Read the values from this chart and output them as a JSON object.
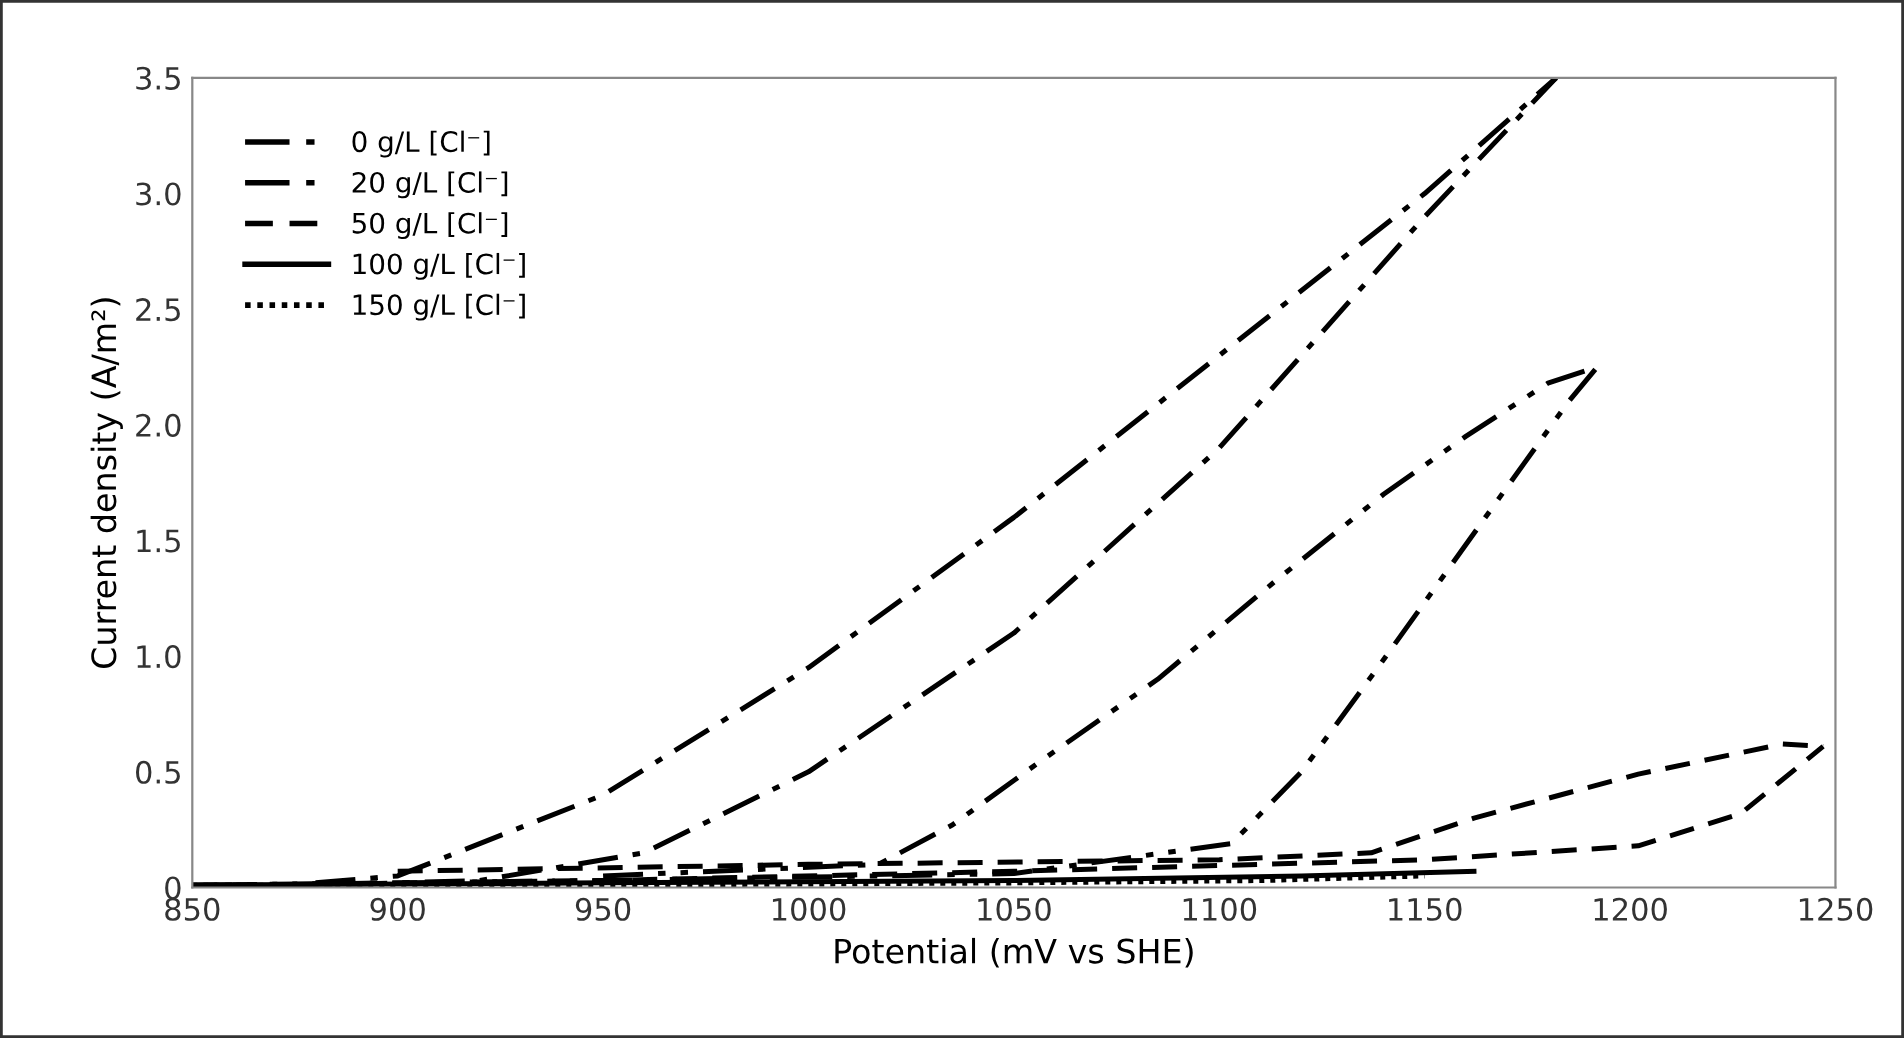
{
  "chart_data": {
    "type": "line",
    "xlabel": "Potential (mV vs SHE)",
    "ylabel": "Current density (A/m²)",
    "xlim": [
      850,
      1250
    ],
    "ylim": [
      0,
      3.5
    ],
    "xticks": [
      850,
      900,
      950,
      1000,
      1050,
      1100,
      1150,
      1200,
      1250
    ],
    "yticks": [
      {
        "value": 0,
        "label": "0"
      },
      {
        "value": 0.5,
        "label": "0.5"
      },
      {
        "value": 1,
        "label": "1.0"
      },
      {
        "value": 1.5,
        "label": "1.5"
      },
      {
        "value": 2,
        "label": "2.0"
      },
      {
        "value": 2.5,
        "label": "2.5"
      },
      {
        "value": 3,
        "label": "3.0"
      },
      {
        "value": 3.5,
        "label": "3.5"
      }
    ],
    "grid": false,
    "legend": "top left",
    "marker": "none",
    "series": [
      {
        "name": "0 g/L [Cl⁻]",
        "color": "#000000",
        "line_style": "dashdot",
        "x": [
          850,
          880,
          900,
          920,
          960,
          1000,
          1050,
          1100,
          1150,
          1182
        ],
        "values": [
          0.01,
          0.01,
          0.02,
          0.03,
          0.15,
          0.5,
          1.1,
          1.9,
          2.9,
          3.5
        ]
      },
      {
        "color": "#000000",
        "line_style": "dashdot",
        "x": [
          880,
          900,
          950,
          1000,
          1050,
          1100,
          1150,
          1182
        ],
        "values": [
          0.02,
          0.05,
          0.4,
          0.95,
          1.6,
          2.3,
          3.0,
          3.5
        ]
      },
      {
        "name": "20 g/L [Cl⁻]",
        "color": "#000000",
        "line_style": "dashdotdot",
        "x": [
          850,
          950,
          1050,
          1103,
          1120,
          1139,
          1168,
          1185,
          1192
        ],
        "values": [
          0.01,
          0.03,
          0.06,
          0.19,
          0.5,
          0.96,
          1.68,
          2.1,
          2.25
        ]
      },
      {
        "color": "#000000",
        "line_style": "dashdotdot",
        "x": [
          950,
          1017,
          1035,
          1056,
          1085,
          1114,
          1140,
          1160,
          1180,
          1192
        ],
        "values": [
          0.05,
          0.1,
          0.27,
          0.54,
          0.9,
          1.33,
          1.7,
          1.95,
          2.18,
          2.25
        ]
      },
      {
        "name": "50 g/L [Cl⁻]",
        "color": "#000000",
        "line_style": "dashed",
        "x": [
          850,
          950,
          1050,
          1150,
          1202,
          1227,
          1247
        ],
        "values": [
          0.01,
          0.03,
          0.07,
          0.12,
          0.18,
          0.32,
          0.61
        ]
      },
      {
        "color": "#000000",
        "line_style": "dashed",
        "x": [
          900,
          1000,
          1100,
          1137,
          1162,
          1202,
          1237,
          1247
        ],
        "values": [
          0.07,
          0.1,
          0.12,
          0.15,
          0.3,
          0.49,
          0.62,
          0.61
        ]
      },
      {
        "name": "100 g/L [Cl⁻]",
        "color": "#000000",
        "line_style": "solid",
        "x": [
          850,
          950,
          1050,
          1120,
          1162
        ],
        "values": [
          0.01,
          0.02,
          0.03,
          0.05,
          0.07
        ]
      },
      {
        "name": "150 g/L [Cl⁻]",
        "color": "#000000",
        "line_style": "dotted",
        "x": [
          850,
          950,
          1050,
          1110,
          1150
        ],
        "values": [
          0.01,
          0.01,
          0.02,
          0.03,
          0.05
        ]
      }
    ]
  }
}
